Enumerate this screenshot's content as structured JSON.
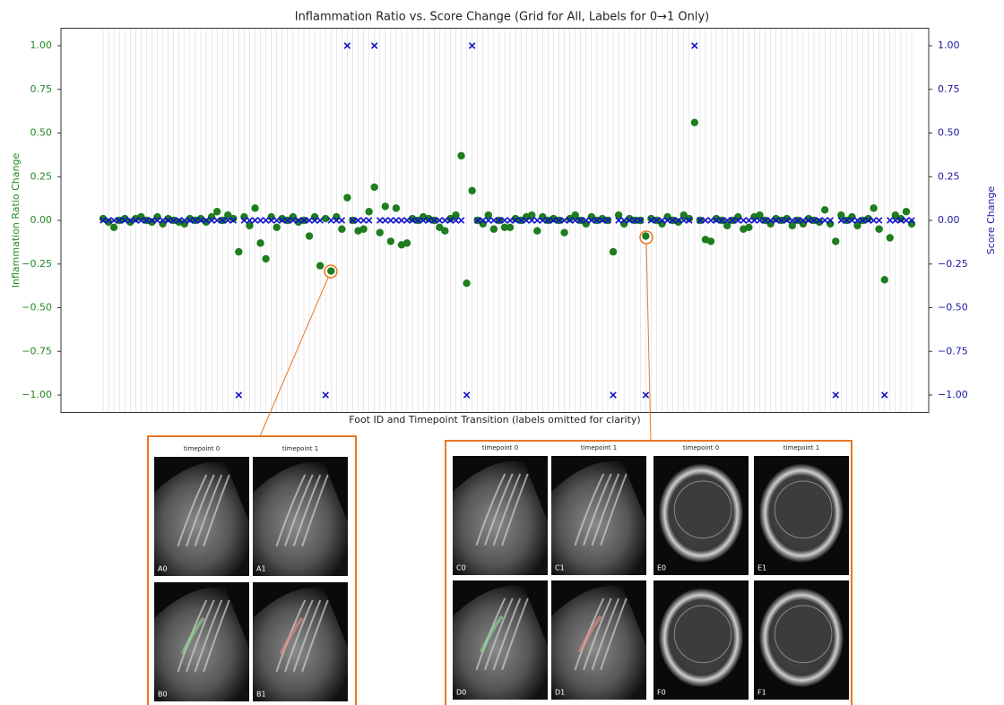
{
  "chart_data": {
    "type": "scatter",
    "title": "Inflammation Ratio vs. Score Change (Grid for All, Labels for 0→1 Only)",
    "xlabel": "Foot ID and Timepoint Transition (labels omitted for clarity)",
    "ylabel": "Inflammation Ratio Change",
    "y2label": "Score Change",
    "grid": "x",
    "categories": [
      null,
      null,
      null,
      null,
      null,
      null,
      null,
      null,
      null,
      null,
      null,
      null,
      null,
      null,
      null,
      null,
      null,
      null,
      null,
      null,
      null,
      null,
      null,
      null,
      null,
      null,
      null,
      null,
      null,
      null,
      null,
      null,
      null,
      null,
      null,
      null,
      null,
      null,
      null,
      null,
      null,
      null,
      null,
      null,
      null,
      null,
      null,
      null,
      null,
      null,
      null,
      null,
      null,
      null,
      null,
      null,
      null,
      null,
      null,
      null,
      null,
      null,
      null,
      null,
      null,
      null,
      null,
      null,
      null,
      null,
      null,
      null,
      null,
      null,
      null,
      null,
      null,
      null,
      null,
      null,
      null,
      null,
      null,
      null,
      null,
      null,
      null,
      null,
      null,
      null,
      null,
      null,
      null,
      null,
      null,
      null,
      null,
      null,
      null,
      null,
      null,
      null,
      null,
      null,
      null,
      null,
      null,
      null,
      null,
      null,
      null,
      null,
      null,
      null,
      null,
      null,
      null,
      null,
      null,
      null,
      null,
      null,
      null,
      null,
      null,
      null,
      null,
      null,
      null,
      null,
      null,
      null,
      null,
      null,
      null,
      null,
      null,
      null,
      null,
      null,
      null,
      null,
      null,
      null,
      null,
      null,
      null,
      null,
      null,
      null
    ],
    "ylim": [
      -1.1,
      1.1
    ],
    "yticks": [
      {
        "value": -1,
        "label": "−1.00"
      },
      {
        "value": -0.75,
        "label": "−0.75"
      },
      {
        "value": -0.5,
        "label": "−0.50"
      },
      {
        "value": -0.25,
        "label": "−0.25"
      },
      {
        "value": 0,
        "label": "0.00"
      },
      {
        "value": 0.25,
        "label": "0.25"
      },
      {
        "value": 0.5,
        "label": "0.50"
      },
      {
        "value": 0.75,
        "label": "0.75"
      },
      {
        "value": 1,
        "label": "1.00"
      }
    ],
    "y2lim": [
      -1.1,
      1.1
    ],
    "y2ticks": [
      {
        "value": -1,
        "label": "−1.00"
      },
      {
        "value": -0.75,
        "label": "−0.75"
      },
      {
        "value": -0.5,
        "label": "−0.50"
      },
      {
        "value": -0.25,
        "label": "−0.25"
      },
      {
        "value": 0,
        "label": "0.00"
      },
      {
        "value": 0.25,
        "label": "0.25"
      },
      {
        "value": 0.5,
        "label": "0.50"
      },
      {
        "value": 0.75,
        "label": "0.75"
      },
      {
        "value": 1,
        "label": "1.00"
      }
    ],
    "ycolor": "#228b22",
    "y2color": "#1a1aa0",
    "series": [
      {
        "color": "#1e7d1e",
        "marker": "o",
        "axis": "y",
        "values": [
          0.01,
          -0.01,
          -0.04,
          0,
          0.01,
          -0.01,
          0.01,
          0.02,
          0,
          -0.01,
          0.02,
          -0.02,
          0.01,
          0,
          -0.01,
          -0.02,
          0.01,
          0,
          0.01,
          -0.01,
          0.02,
          0.05,
          0,
          0.03,
          0.01,
          -0.18,
          0.02,
          -0.03,
          0.07,
          -0.13,
          -0.22,
          0.02,
          -0.04,
          0.01,
          0,
          0.02,
          -0.01,
          0,
          -0.09,
          0.02,
          -0.26,
          0.01,
          -0.29,
          0.02,
          -0.05,
          0.13,
          0,
          -0.06,
          -0.05,
          0.05,
          0.19,
          -0.07,
          0.08,
          -0.12,
          0.07,
          -0.14,
          -0.13,
          0.01,
          0,
          0.02,
          0.01,
          0,
          -0.04,
          -0.06,
          0.01,
          0.03,
          0.37,
          -0.36,
          0.17,
          0,
          -0.02,
          0.03,
          -0.05,
          0,
          -0.04,
          -0.04,
          0.01,
          0,
          0.02,
          0.03,
          -0.06,
          0.02,
          0,
          0.01,
          0,
          -0.07,
          0.01,
          0.03,
          0,
          -0.02,
          0.02,
          0,
          0.01,
          0,
          -0.18,
          0.03,
          -0.02,
          0.01,
          0,
          0,
          -0.09,
          0.01,
          0,
          -0.02,
          0.02,
          0,
          -0.01,
          0.03,
          0.01,
          0.56,
          0,
          -0.11,
          -0.12,
          0.01,
          0,
          -0.03,
          0,
          0.02,
          -0.05,
          -0.04,
          0.02,
          0.03,
          0,
          -0.02,
          0.01,
          0,
          0.01,
          -0.03,
          0,
          -0.02,
          0.01,
          0,
          -0.01,
          0.06,
          -0.02,
          -0.12,
          0.03,
          0,
          0.02,
          -0.03,
          0,
          0.01,
          0.07,
          -0.05,
          -0.34,
          -0.1,
          0.03,
          0.01,
          0.05,
          -0.02
        ]
      },
      {
        "color": "#1010c8",
        "marker": "x",
        "axis": "y2",
        "values": [
          0,
          0,
          0,
          0,
          0,
          0,
          0,
          0,
          0,
          0,
          0,
          0,
          0,
          0,
          0,
          0,
          0,
          0,
          0,
          0,
          0,
          0,
          0,
          0,
          0,
          -1,
          0,
          0,
          0,
          0,
          0,
          0,
          0,
          0,
          0,
          0,
          0,
          0,
          0,
          0,
          0,
          -1,
          0,
          0,
          0,
          1,
          0,
          0,
          0,
          0,
          1,
          0,
          0,
          0,
          0,
          0,
          0,
          0,
          0,
          0,
          0,
          0,
          0,
          0,
          0,
          0,
          0,
          -1,
          1,
          0,
          0,
          0,
          0,
          0,
          0,
          0,
          0,
          0,
          0,
          0,
          0,
          0,
          0,
          0,
          0,
          0,
          0,
          0,
          0,
          0,
          0,
          0,
          0,
          0,
          -1,
          0,
          0,
          0,
          0,
          0,
          -1,
          0,
          0,
          0,
          0,
          0,
          0,
          0,
          0,
          1,
          0,
          0,
          0,
          0,
          0,
          0,
          0,
          0,
          0,
          0,
          0,
          0,
          0,
          0,
          0,
          0,
          0,
          0,
          0,
          0,
          0,
          0,
          0,
          0,
          0,
          -1,
          0,
          0,
          0,
          0,
          0,
          0,
          0,
          0,
          -1,
          0,
          0,
          0,
          0,
          0
        ]
      }
    ]
  },
  "panels": [
    {
      "headers": [
        "timepoint 0",
        "timepoint 1"
      ],
      "labels": [
        "A0",
        "A1",
        "B0",
        "B1"
      ]
    },
    {
      "headers": [
        "timepoint 0",
        "timepoint 1",
        "timepoint 0",
        "timepoint 1"
      ],
      "labels": [
        "C0",
        "C1",
        "E0",
        "E1",
        "D0",
        "D1",
        "F0",
        "F1"
      ]
    }
  ]
}
